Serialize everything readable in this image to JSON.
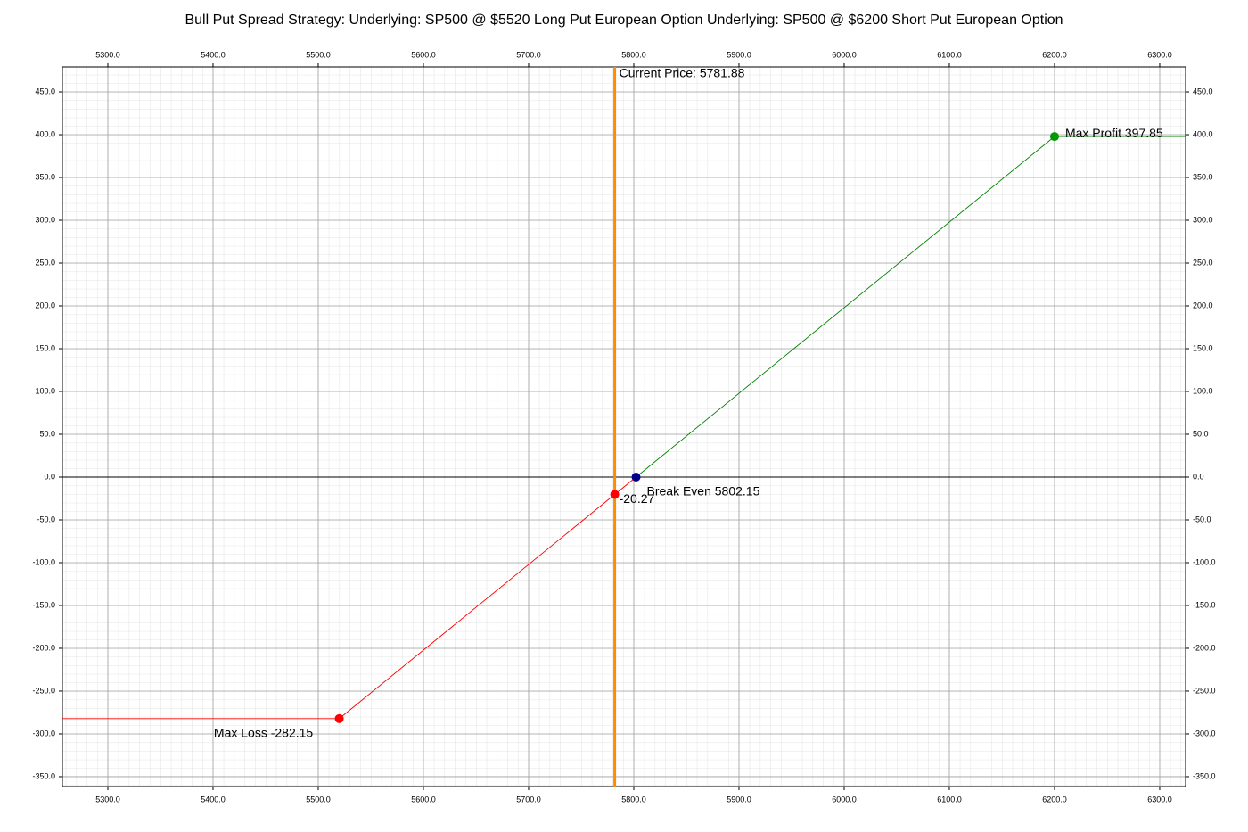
{
  "chart_data": {
    "type": "line",
    "title": "Bull Put Spread Strategy:  Underlying: SP500 @ $5520 Long Put European Option  Underlying: SP500 @ $6200 Short Put European Option",
    "xlim": [
      5256.8,
      6324.6
    ],
    "ylim": [
      -361.5,
      479.2
    ],
    "xticks": [
      {
        "value": 5300,
        "label": "5300.0"
      },
      {
        "value": 5400,
        "label": "5400.0"
      },
      {
        "value": 5500,
        "label": "5500.0"
      },
      {
        "value": 5600,
        "label": "5600.0"
      },
      {
        "value": 5700,
        "label": "5700.0"
      },
      {
        "value": 5800,
        "label": "5800.0"
      },
      {
        "value": 5900,
        "label": "5900.0"
      },
      {
        "value": 6000,
        "label": "6000.0"
      },
      {
        "value": 6100,
        "label": "6100.0"
      },
      {
        "value": 6200,
        "label": "6200.0"
      },
      {
        "value": 6300,
        "label": "6300.0"
      }
    ],
    "yticks": [
      {
        "value": 450,
        "label": "450.0"
      },
      {
        "value": 400,
        "label": "400.0"
      },
      {
        "value": 350,
        "label": "350.0"
      },
      {
        "value": 300,
        "label": "300.0"
      },
      {
        "value": 250,
        "label": "250.0"
      },
      {
        "value": 200,
        "label": "200.0"
      },
      {
        "value": 150,
        "label": "150.0"
      },
      {
        "value": 100,
        "label": "100.0"
      },
      {
        "value": 50,
        "label": "50.0"
      },
      {
        "value": 0,
        "label": "0.0"
      },
      {
        "value": -50,
        "label": "-50.0"
      },
      {
        "value": -100,
        "label": "-100.0"
      },
      {
        "value": -150,
        "label": "-150.0"
      },
      {
        "value": -200,
        "label": "-200.0"
      },
      {
        "value": -250,
        "label": "-250.0"
      },
      {
        "value": -300,
        "label": "-300.0"
      },
      {
        "value": -350,
        "label": "-350.0"
      }
    ],
    "grid": true,
    "series": [
      {
        "color": "#ff0000",
        "x": [
          5256.8,
          5520,
          5802.15
        ],
        "values": [
          -282.15,
          -282.15,
          0
        ]
      },
      {
        "color": "#008000",
        "x": [
          5802.15,
          6200,
          6324.6
        ],
        "values": [
          0,
          397.85,
          397.85
        ]
      }
    ],
    "current_price": {
      "label": "Current Price: 5781.88",
      "value": 5781.88,
      "color": "#ff8c00"
    },
    "annotations": [
      {
        "text": "Max Loss -282.15",
        "x": 5520,
        "y": -282.15,
        "color": "#ff0000"
      },
      {
        "text": "-20.27",
        "x": 5781.88,
        "y": -20.27,
        "color": "#ff0000"
      },
      {
        "text": "Break Even 5802.15",
        "x": 5802.15,
        "y": 0,
        "color": "#00008b"
      },
      {
        "text": "Max Profit 397.85",
        "x": 6200,
        "y": 397.85,
        "color": "#009900"
      }
    ]
  }
}
